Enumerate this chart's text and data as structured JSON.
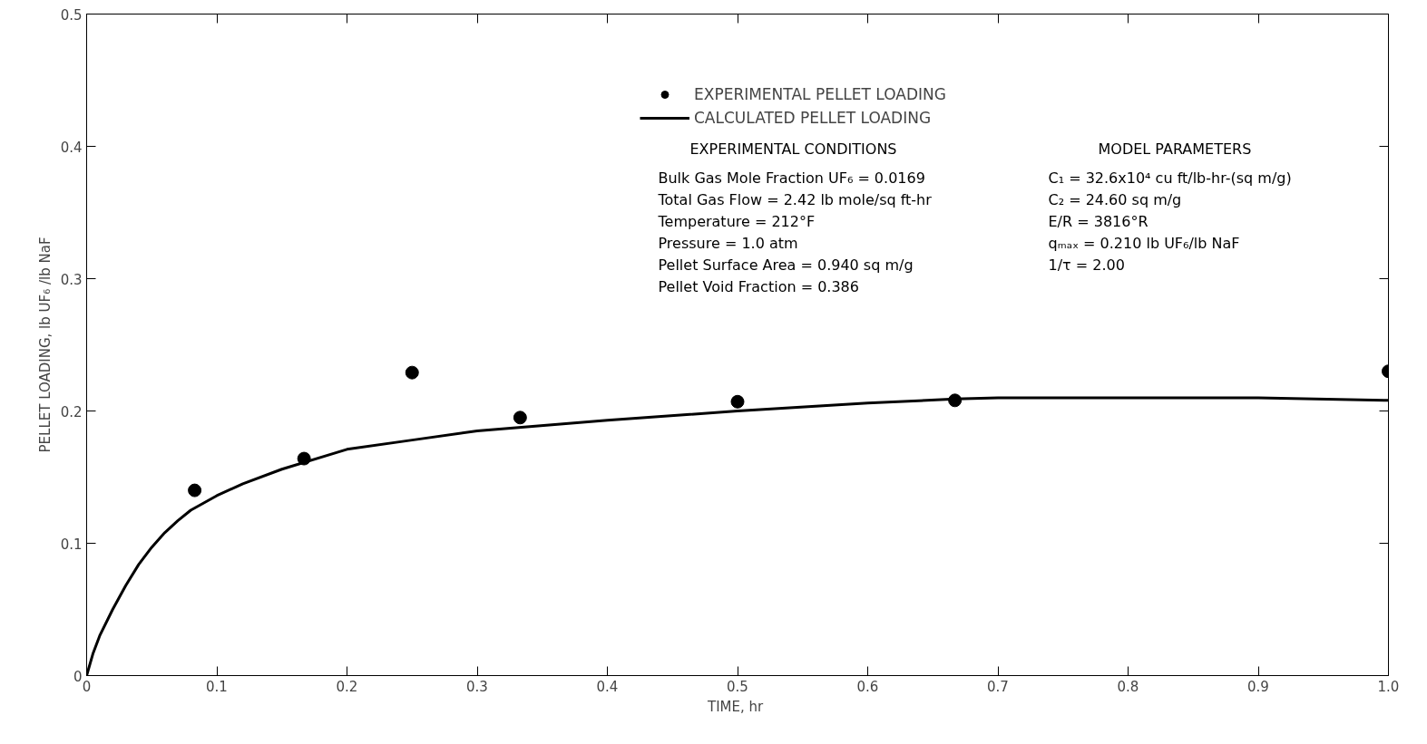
{
  "chart_data": {
    "type": "scatter",
    "xlabel": "TIME,  hr",
    "ylabel": "PELLET LOADING, lb UF₆ /lb NaF",
    "xlim": [
      0,
      1.0
    ],
    "ylim": [
      0,
      0.5
    ],
    "xticks": [
      0,
      0.1,
      0.2,
      0.3,
      0.4,
      0.5,
      0.6,
      0.7,
      0.8,
      0.9,
      {
        "value": 1.0,
        "label": "1.0"
      }
    ],
    "yticks": [
      0,
      0.1,
      0.2,
      0.3,
      0.4,
      0.5
    ],
    "grid": false,
    "legend": "top right",
    "series": [
      {
        "name": "EXPERIMENTAL PELLET LOADING",
        "marker": "circle",
        "color": "#000000",
        "x": [
          0.083,
          0.167,
          0.25,
          0.333,
          0.5,
          0.667,
          1.0
        ],
        "values": [
          0.14,
          0.164,
          0.229,
          0.195,
          0.207,
          0.208,
          0.23
        ]
      },
      {
        "name": "CALCULATED PELLET LOADING",
        "type": "line",
        "line_style": "solid",
        "color": "#000000",
        "x": [
          0,
          0.005,
          0.01,
          0.02,
          0.03,
          0.04,
          0.05,
          0.06,
          0.07,
          0.08,
          0.1,
          0.12,
          0.15,
          0.2,
          0.25,
          0.3,
          0.4,
          0.5,
          0.6,
          0.667,
          0.7,
          0.8,
          0.9,
          1.0
        ],
        "values": [
          0,
          0.017,
          0.03,
          0.05,
          0.068,
          0.084,
          0.097,
          0.108,
          0.117,
          0.125,
          0.136,
          0.145,
          0.156,
          0.171,
          0.178,
          0.185,
          0.193,
          0.2,
          0.206,
          0.209,
          0.21,
          0.21,
          0.21,
          0.208
        ]
      }
    ],
    "annotations": [
      "EXPERIMENTAL CONDITIONS",
      "Bulk Gas Mole Fraction UF₆ = 0.0169",
      "Total Gas Flow = 2.42 lb mole/sq ft-hr",
      "Temperature = 212°F",
      "Pressure = 1.0 atm",
      "Pellet Surface Area = 0.940 sq m/g",
      "Pellet Void Fraction = 0.386",
      "MODEL PARAMETERS",
      "C₁ = 32.6x10⁴ cu ft/lb-hr-(sq m/g)",
      "C₂ = 24.60 sq m/g",
      "E/R = 3816°R",
      "qₘₐₓ = 0.210 lb UF₆/lb NaF",
      "1/τ = 2.00"
    ]
  }
}
